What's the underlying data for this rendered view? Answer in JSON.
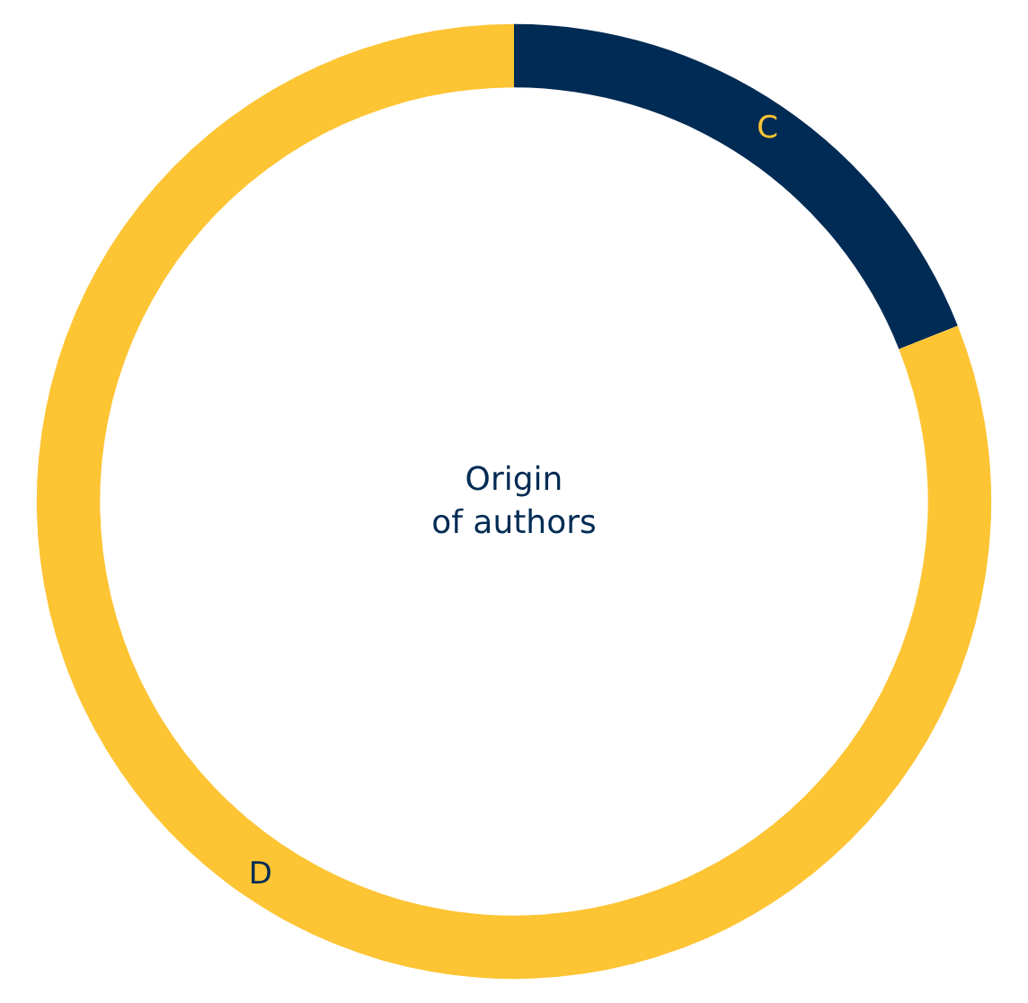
{
  "chart_data": {
    "type": "donut",
    "title": "Origin\nof authors",
    "categories": [
      "C",
      "D"
    ],
    "values": [
      19,
      81
    ],
    "colors": [
      "#002b54",
      "#fdc433"
    ],
    "legend": false
  }
}
